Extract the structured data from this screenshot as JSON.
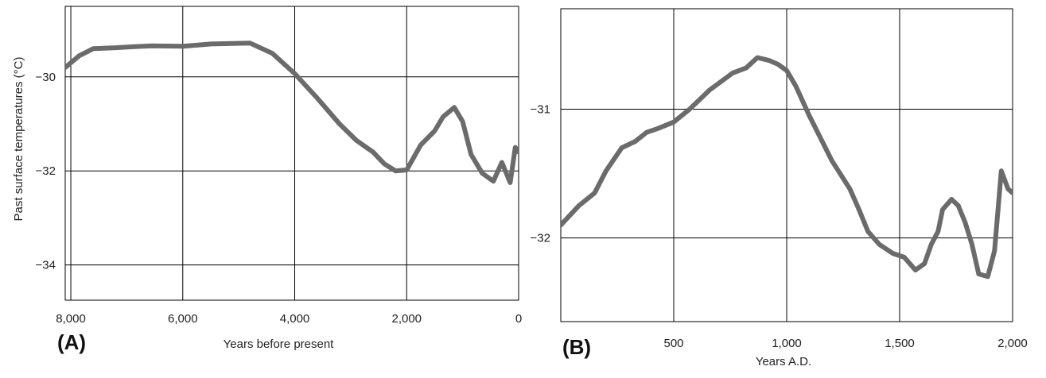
{
  "colors": {
    "line": "#6b6b6b",
    "grid": "#000000",
    "text": "#222222"
  },
  "chart_data": [
    {
      "type": "line",
      "panel_label": "(A)",
      "title": "",
      "xlabel": "Years before present",
      "ylabel": "Past surface temperatures (°C)",
      "x_reversed": true,
      "xlim": [
        8100,
        0
      ],
      "ylim": [
        -34.75,
        -28.5
      ],
      "xticks": [
        8000,
        6000,
        4000,
        2000,
        0
      ],
      "xtick_labels": [
        "8,000",
        "6,000",
        "4,000",
        "2,000",
        "0"
      ],
      "yticks": [
        -30,
        -32,
        -34
      ],
      "ytick_labels": [
        "−30",
        "−32",
        "−34"
      ],
      "grid": true,
      "series": [
        {
          "x": [
            8100,
            7850,
            7600,
            7200,
            6900,
            6550,
            6000,
            5500,
            4800,
            4400,
            4000,
            3600,
            3200,
            2900,
            2600,
            2400,
            2200,
            2000,
            1750,
            1500,
            1350,
            1150,
            1000,
            850,
            650,
            450,
            300,
            150,
            60,
            0
          ],
          "y": [
            -29.8,
            -29.55,
            -29.4,
            -29.38,
            -29.36,
            -29.34,
            -29.35,
            -29.3,
            -29.28,
            -29.5,
            -29.93,
            -30.45,
            -31.0,
            -31.35,
            -31.6,
            -31.85,
            -32.0,
            -31.98,
            -31.45,
            -31.15,
            -30.85,
            -30.65,
            -30.95,
            -31.65,
            -32.05,
            -32.22,
            -31.82,
            -32.25,
            -31.5,
            -31.6
          ]
        }
      ]
    },
    {
      "type": "line",
      "panel_label": "(B)",
      "title": "",
      "xlabel": "Years A.D.",
      "ylabel": "",
      "xlim": [
        0,
        2000
      ],
      "ylim": [
        -32.65,
        -30.22
      ],
      "xticks": [
        500,
        1000,
        1500,
        2000
      ],
      "xtick_labels": [
        "500",
        "1,000",
        "1,500",
        "2,000"
      ],
      "yticks": [
        -31,
        -32
      ],
      "ytick_labels": [
        "−31",
        "−32"
      ],
      "grid": true,
      "series": [
        {
          "x": [
            0,
            80,
            150,
            200,
            270,
            330,
            380,
            430,
            500,
            570,
            660,
            760,
            820,
            870,
            920,
            960,
            1000,
            1040,
            1100,
            1200,
            1280,
            1320,
            1360,
            1410,
            1470,
            1520,
            1570,
            1610,
            1640,
            1670,
            1690,
            1730,
            1760,
            1790,
            1820,
            1850,
            1890,
            1920,
            1950,
            1980,
            2000
          ],
          "y": [
            -31.9,
            -31.75,
            -31.65,
            -31.48,
            -31.3,
            -31.25,
            -31.18,
            -31.15,
            -31.1,
            -31.0,
            -30.85,
            -30.72,
            -30.68,
            -30.6,
            -30.62,
            -30.65,
            -30.7,
            -30.82,
            -31.05,
            -31.4,
            -31.62,
            -31.78,
            -31.95,
            -32.05,
            -32.12,
            -32.15,
            -32.25,
            -32.2,
            -32.05,
            -31.95,
            -31.78,
            -31.7,
            -31.75,
            -31.88,
            -32.05,
            -32.28,
            -32.3,
            -32.1,
            -31.48,
            -31.62,
            -31.65
          ]
        }
      ]
    }
  ]
}
